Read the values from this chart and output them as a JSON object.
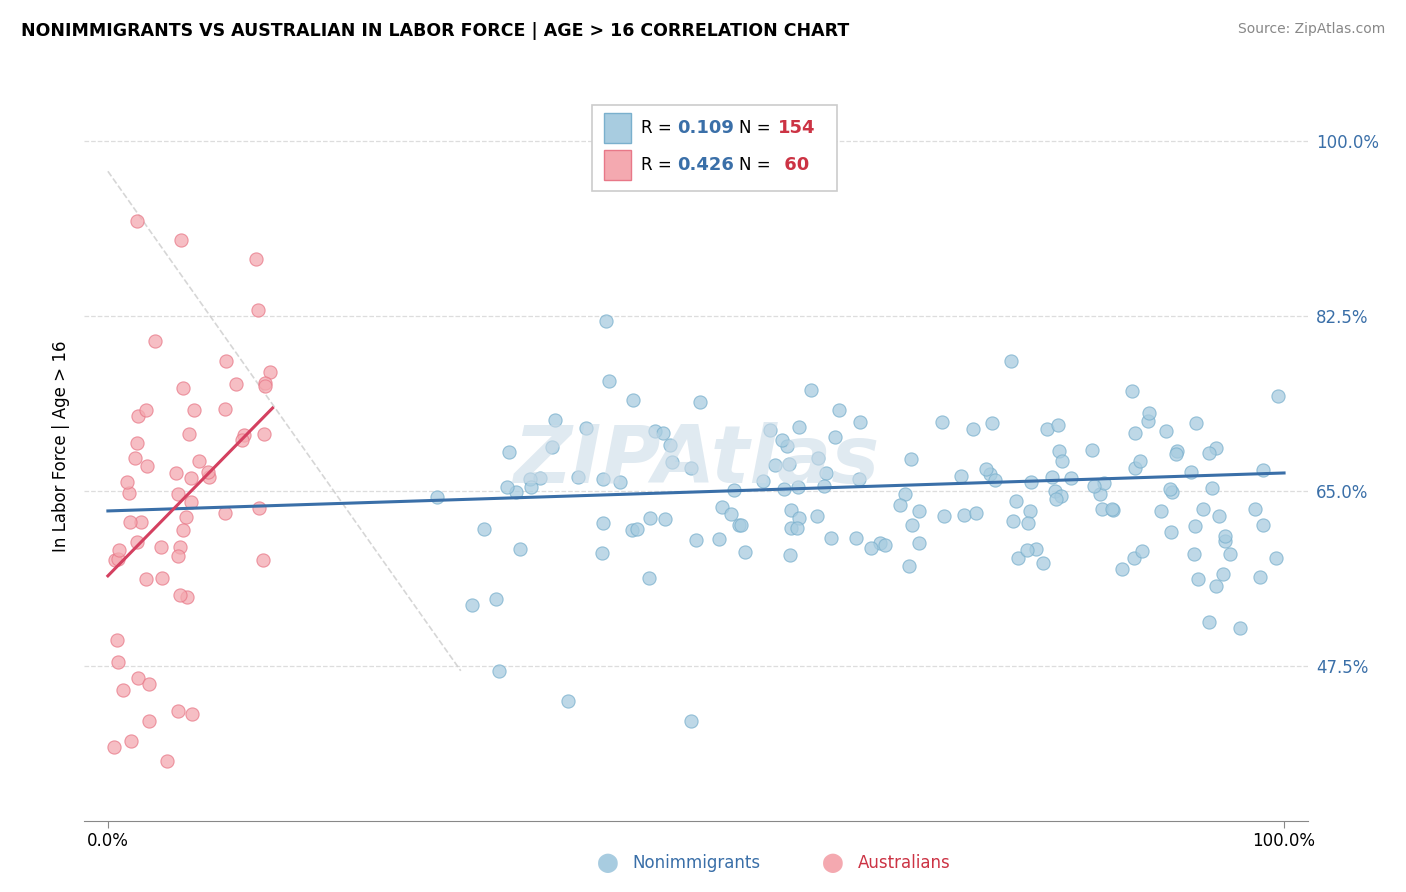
{
  "title": "NONIMMIGRANTS VS AUSTRALIAN IN LABOR FORCE | AGE > 16 CORRELATION CHART",
  "source": "Source: ZipAtlas.com",
  "ylabel": "In Labor Force | Age > 16",
  "y_ticks_right": [
    1.0,
    0.825,
    0.65,
    0.475
  ],
  "y_tick_labels_right": [
    "100.0%",
    "82.5%",
    "65.0%",
    "47.5%"
  ],
  "ylim": [
    0.32,
    1.07
  ],
  "xlim": [
    -0.02,
    1.02
  ],
  "blue_scatter_color": "#a8cce0",
  "blue_scatter_edge": "#7ab0cd",
  "pink_scatter_color": "#f4a9b0",
  "pink_scatter_edge": "#e87888",
  "blue_line_color": "#3a6fa8",
  "pink_line_color": "#d44060",
  "grid_color": "#dddddd",
  "diag_color": "#cccccc",
  "watermark": "ZIPAtlas",
  "watermark_color": "#ccdce8"
}
